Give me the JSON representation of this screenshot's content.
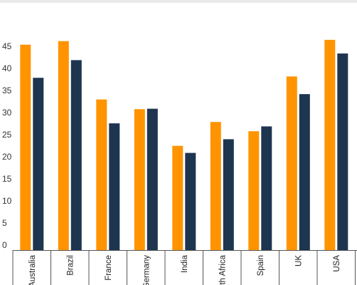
{
  "chart_data": {
    "type": "bar",
    "categories": [
      "Australia",
      "Brazil",
      "France",
      "Germany",
      "India",
      "South Africa",
      "Spain",
      "UK",
      "USA"
    ],
    "series": [
      {
        "values": [
          46.5,
          47.3,
          34.1,
          31.9,
          23.6,
          29.0,
          26.9,
          39.3,
          47.6
        ]
      },
      {
        "values": [
          39.0,
          43.0,
          28.7,
          32.0,
          22.0,
          25.1,
          28.0,
          35.3,
          44.5
        ]
      }
    ],
    "ylim": [
      0,
      50
    ],
    "yticks": [
      0,
      5,
      10,
      15,
      20,
      25,
      30,
      35,
      40,
      45
    ],
    "colors": [
      "#ff9400",
      "#1e3550"
    ],
    "grid": false,
    "legend": "none",
    "title": "",
    "xlabel": "",
    "ylabel": ""
  }
}
